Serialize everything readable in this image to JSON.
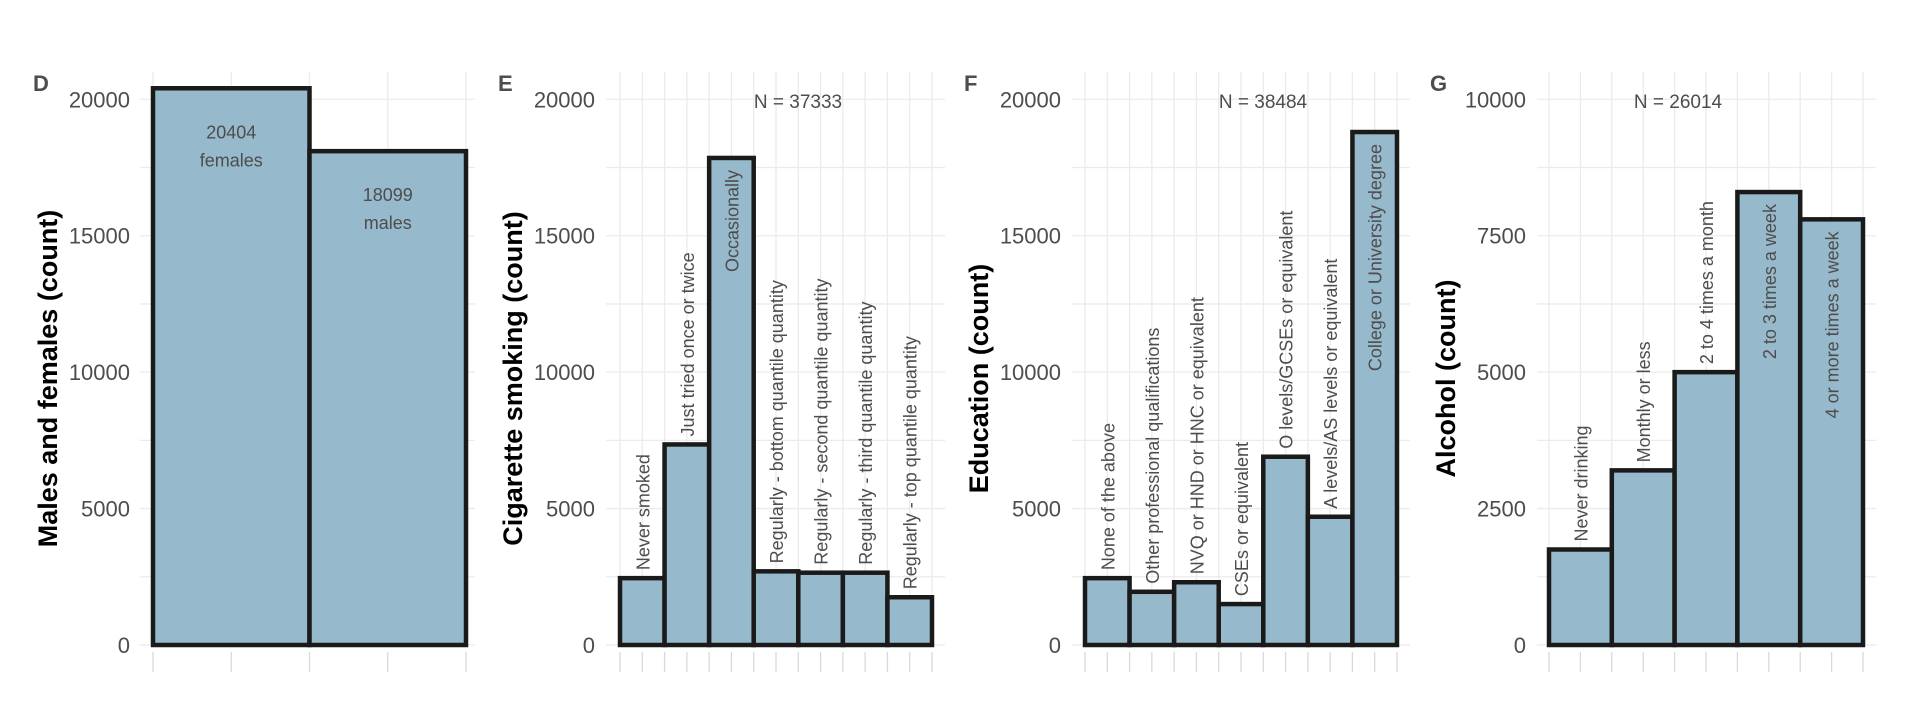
{
  "colors": {
    "bar_fill": "#97b9cc",
    "bar_stroke": "#1a1a1a",
    "grid": "#ebebeb",
    "text": "#4d4d4d"
  },
  "chart_data": [
    {
      "panel": "D",
      "type": "bar",
      "ylabel": "Males and females (count)",
      "ylim": [
        0,
        21000
      ],
      "yticks": [
        0,
        5000,
        10000,
        15000,
        20000
      ],
      "categories": [
        "females",
        "males"
      ],
      "values": [
        20404,
        18099
      ],
      "bar_labels": [
        [
          "20404",
          "females"
        ],
        [
          "18099",
          "males"
        ]
      ],
      "n_label": "",
      "grid": true
    },
    {
      "panel": "E",
      "type": "bar",
      "ylabel": "Cigarette smoking (count)",
      "ylim": [
        0,
        21000
      ],
      "yticks": [
        0,
        5000,
        10000,
        15000,
        20000
      ],
      "categories": [
        "Never smoked",
        "Just tried once or twice",
        "Occasionally",
        "Regularly - bottom quantile quantity",
        "Regularly - second quantile quantity",
        "Regularly - third quantile quantity",
        "Regularly - top quantile quantity"
      ],
      "values": [
        2450,
        7350,
        17850,
        2700,
        2650,
        2650,
        1750
      ],
      "n_label": "N = 37333",
      "grid": true
    },
    {
      "panel": "F",
      "type": "bar",
      "ylabel": "Education (count)",
      "ylim": [
        0,
        21000
      ],
      "yticks": [
        0,
        5000,
        10000,
        15000,
        20000
      ],
      "categories": [
        "None of the above",
        "Other professional qualifications",
        "NVQ or HND or HNC or equivalent",
        "CSEs or equivalent",
        "O levels/GCSEs or equivalent",
        "A levels/AS levels or equivalent",
        "College or University degree"
      ],
      "values": [
        2450,
        1950,
        2300,
        1500,
        6900,
        4700,
        18800
      ],
      "n_label": "N = 38484",
      "grid": true
    },
    {
      "panel": "G",
      "type": "bar",
      "ylabel": "Alcohol (count)",
      "ylim": [
        0,
        10500
      ],
      "yticks": [
        0,
        2500,
        5000,
        7500,
        10000
      ],
      "ytick_labels": [
        "0",
        "2500",
        "5000",
        "7500",
        "10000"
      ],
      "categories": [
        "Never drinking",
        "Monthly or less",
        "2 to 4 times a month",
        "2 to 3 times a week",
        "4 or more times a week"
      ],
      "values": [
        1750,
        3200,
        5000,
        8300,
        7800
      ],
      "n_label": "N = 26014",
      "grid": true
    }
  ]
}
